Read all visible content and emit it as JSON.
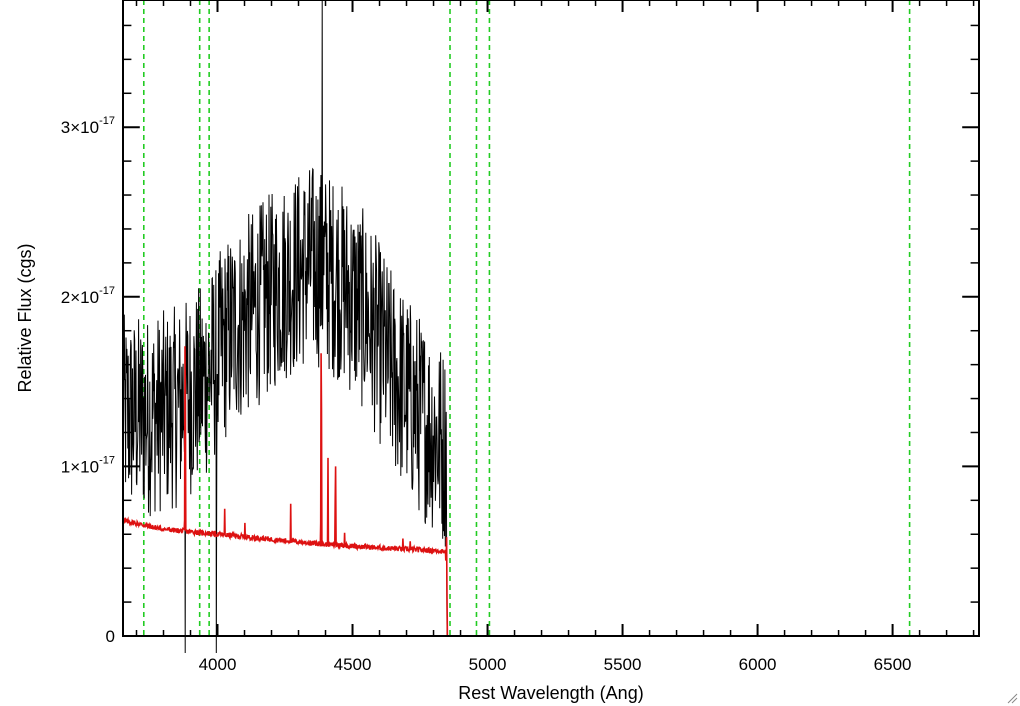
{
  "chart_data": {
    "type": "line",
    "xlabel": "Rest Wavelength (Ang)",
    "ylabel": "Relative Flux (cgs)",
    "xlim": [
      3650,
      6820
    ],
    "ylim": [
      0,
      3.75e-17
    ],
    "x_ticks": [
      {
        "value": 4000,
        "label": "4000"
      },
      {
        "value": 4500,
        "label": "4500"
      },
      {
        "value": 5000,
        "label": "5000"
      },
      {
        "value": 5500,
        "label": "5500"
      },
      {
        "value": 6000,
        "label": "6000"
      },
      {
        "value": 6500,
        "label": "6500"
      }
    ],
    "y_ticks": [
      {
        "value": 0,
        "mantissa": "0",
        "exponent": ""
      },
      {
        "value": 1e-17,
        "mantissa": "1×10",
        "exponent": "-17"
      },
      {
        "value": 2e-17,
        "mantissa": "2×10",
        "exponent": "-17"
      },
      {
        "value": 3e-17,
        "mantissa": "3×10",
        "exponent": "-17"
      }
    ],
    "x_minor_step": 100,
    "y_minor_step": 2e-18,
    "grid": false,
    "legend": "none",
    "reference_lines": {
      "color": "#22cc22",
      "style": "dashed",
      "x": [
        3727,
        3934,
        3969,
        4861,
        4959,
        5007,
        6563
      ]
    },
    "series": [
      {
        "color": "#000000",
        "kind": "observed spectrum",
        "x_range": [
          3650,
          4850
        ],
        "envelope_x": [
          3650,
          3750,
          3850,
          3950,
          4050,
          4150,
          4250,
          4350,
          4450,
          4550,
          4650,
          4750,
          4850
        ],
        "envelope_y": [
          1.3e-17,
          1.3e-17,
          1.35e-17,
          1.5e-17,
          1.8e-17,
          1.95e-17,
          2.1e-17,
          2.2e-17,
          2.1e-17,
          1.9e-17,
          1.55e-17,
          1.3e-17,
          1.1e-17
        ],
        "noise_amplitude": 6e-18,
        "spikes": [
          {
            "x": 4387,
            "y": 3.75e-17
          },
          {
            "x": 3880,
            "y": -1e-18
          },
          {
            "x": 3995,
            "y": -1e-18
          }
        ]
      },
      {
        "color": "#dd1111",
        "kind": "model continuum",
        "x_range": [
          3650,
          6820
        ],
        "continuum_x": [
          3650,
          3800,
          4000,
          4200,
          4400,
          4600,
          4845,
          4850,
          6820
        ],
        "continuum_y": [
          6.8e-18,
          6.3e-18,
          6e-18,
          5.7e-18,
          5.4e-18,
          5.2e-18,
          5e-18,
          0,
          0
        ],
        "emission_lines": [
          {
            "x": 3727,
            "peak": 6.5e-18
          },
          {
            "x": 3880,
            "peak": 2.05e-17
          },
          {
            "x": 4026,
            "peak": 9e-18
          },
          {
            "x": 4101,
            "peak": 8e-18
          },
          {
            "x": 4271,
            "peak": 7.8e-18
          },
          {
            "x": 4384,
            "peak": 2e-17
          },
          {
            "x": 4409,
            "peak": 1.05e-17
          },
          {
            "x": 4437,
            "peak": 1.2e-17
          },
          {
            "x": 4471,
            "peak": 7.3e-18
          },
          {
            "x": 4686,
            "peak": 6.9e-18
          },
          {
            "x": 4713,
            "peak": 6.7e-18
          },
          {
            "x": 4848,
            "peak": 7e-18
          }
        ]
      }
    ]
  }
}
